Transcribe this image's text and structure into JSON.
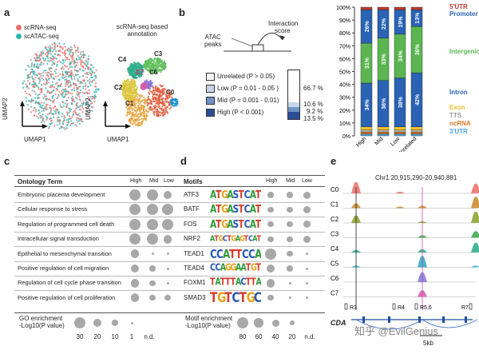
{
  "panels": {
    "a": "a",
    "b": "b",
    "c": "c",
    "d": "d",
    "e": "e"
  },
  "panel_a": {
    "legend": [
      {
        "label": "scRNA-seq",
        "color": "#e8706a"
      },
      {
        "label": "scATAC-seq",
        "color": "#2fb5b0"
      }
    ],
    "right_title_line1": "scRNA-seq based",
    "right_title_line2": "annotation",
    "axis_y": "UMAP2",
    "axis_x": "UMAP1",
    "clusters": [
      "C0",
      "C1",
      "C2",
      "C3",
      "C4",
      "C5",
      "C6",
      "C7"
    ]
  },
  "panel_b": {
    "interaction_label_1": "Interaction",
    "interaction_label_2": "score",
    "atac_label_1": "ATAC",
    "atac_label_2": "peaks",
    "legend": [
      {
        "label": "Unrelated (P > 0.05)",
        "color": "#ffffff",
        "pct": "66.7 %"
      },
      {
        "label": "Low (P = 0.01 - 0.05 )",
        "color": "#c7d7ea",
        "pct": "10.6 %"
      },
      {
        "label": "Mid (P = 0.001 - 0.01)",
        "color": "#6f93c6",
        "pct": "9.2 %"
      },
      {
        "label": "High (P < 0.001)",
        "color": "#2a4f98",
        "pct": "13.5 %"
      }
    ]
  },
  "chart_data": {
    "type": "bar",
    "stacked": true,
    "categories": [
      "High",
      "Mid",
      "Low",
      "Unrelated"
    ],
    "yticks": [
      "0%",
      "10%",
      "20%",
      "30%",
      "40%",
      "50%",
      "60%",
      "70%",
      "80%",
      "90%",
      "100%"
    ],
    "ylim": [
      0,
      100
    ],
    "series": [
      {
        "name": "3'UTR",
        "color": "#4fa3d6",
        "values": [
          1.5,
          1.5,
          1.5,
          1.5
        ]
      },
      {
        "name": "ncRNA",
        "color": "#e07a2b",
        "values": [
          1.5,
          1.5,
          1.5,
          1.5
        ]
      },
      {
        "name": "TTS",
        "color": "#b0b0b0",
        "values": [
          1.5,
          1.5,
          1.5,
          1.5
        ]
      },
      {
        "name": "Exon",
        "color": "#f2c230",
        "values": [
          2.5,
          2.5,
          2.5,
          2.5
        ]
      },
      {
        "name": "Intron",
        "color": "#2a63b4",
        "values": [
          34,
          36,
          38,
          42
        ],
        "labels": [
          "34%",
          "36%",
          "38%",
          "42%"
        ]
      },
      {
        "name": "Intergenic",
        "color": "#5bb651",
        "values": [
          31,
          33,
          34,
          36
        ],
        "labels": [
          "31%",
          "33%",
          "34%",
          "36%"
        ]
      },
      {
        "name": "Promoter",
        "color": "#2a63b4",
        "values": [
          26,
          22,
          19,
          13
        ],
        "labels": [
          "26%",
          "22%",
          "19%",
          "13%"
        ]
      },
      {
        "name": "5'UTR",
        "color": "#c0392b",
        "values": [
          2,
          2,
          2,
          2
        ]
      }
    ]
  },
  "panel_c": {
    "header": "Ontology Term",
    "cols": [
      "High",
      "Mid",
      "Low"
    ],
    "rows": [
      {
        "term": "Embryonic placenta development",
        "sizes": [
          30,
          30,
          20
        ]
      },
      {
        "term": "Cellular response to stress",
        "sizes": [
          30,
          30,
          30
        ]
      },
      {
        "term": "Regulation of programmed cell death",
        "sizes": [
          30,
          30,
          30
        ]
      },
      {
        "term": "Intracellular signal transduction",
        "sizes": [
          30,
          30,
          20
        ]
      },
      {
        "term": "Epithelial to mesenchymal transition",
        "sizes": [
          20,
          1,
          1
        ]
      },
      {
        "term": "Positive regulation of cell migration",
        "sizes": [
          20,
          10,
          1
        ]
      },
      {
        "term": "Regulation of cell cycle phase transition",
        "sizes": [
          20,
          10,
          1
        ]
      },
      {
        "term": "Positive regulation of cell proliferation",
        "sizes": [
          20,
          10,
          10
        ]
      }
    ],
    "legend_title_1": "GO enrichment",
    "legend_title_2": "-Log10(P value)",
    "legend_vals": [
      "30",
      "20",
      "10",
      "1",
      "n.d."
    ]
  },
  "panel_d": {
    "header": "Motifs",
    "cols": [
      "High",
      "Mid",
      "Low"
    ],
    "rows": [
      {
        "motif": "ATF3",
        "logo": "ATGASTCAT",
        "sizes": [
          20,
          20,
          30
        ]
      },
      {
        "motif": "BATF",
        "logo": "ATGASTCAT",
        "sizes": [
          20,
          20,
          30
        ]
      },
      {
        "motif": "FOS",
        "logo": "ATGASTCAT",
        "sizes": [
          20,
          20,
          30
        ]
      },
      {
        "motif": "NRF2",
        "logo": "ATGCTGAGTCAT",
        "sizes": [
          20,
          20,
          30
        ]
      },
      {
        "motif": "TEAD1",
        "logo": "CCATTCCA",
        "sizes": [
          60,
          20,
          1
        ]
      },
      {
        "motif": "TEAD4",
        "logo": "CCAGGAATGT",
        "sizes": [
          40,
          20,
          1
        ]
      },
      {
        "motif": "FOXM1",
        "logo": "TATTTACTTA",
        "sizes": [
          40,
          1,
          1
        ]
      },
      {
        "motif": "SMAD3",
        "logo": "TGTCTGC",
        "sizes": [
          20,
          1,
          1
        ]
      }
    ],
    "legend_title_1": "Motif enrichment",
    "legend_title_2": "-Log10(P value)",
    "legend_vals": [
      "80",
      "60",
      "40",
      "20",
      "n.d."
    ]
  },
  "panel_e": {
    "coord": "Chr1:20,915,290-20,940,881",
    "tracks": [
      {
        "name": "C0",
        "color": "#e8706a"
      },
      {
        "name": "C1",
        "color": "#c8882a"
      },
      {
        "name": "C2",
        "color": "#8aa12a"
      },
      {
        "name": "C3",
        "color": "#3aa64a"
      },
      {
        "name": "C4",
        "color": "#2aa88a"
      },
      {
        "name": "C5",
        "color": "#2aa8c8"
      },
      {
        "name": "C6",
        "color": "#7a78d8"
      },
      {
        "name": "C7",
        "color": "#d45aa8"
      }
    ],
    "regions": [
      "R3",
      "R4",
      "R5,6",
      "R7"
    ],
    "gene": "CDA",
    "scale": "5kb",
    "watermark": "知乎 @EvilGenius"
  }
}
